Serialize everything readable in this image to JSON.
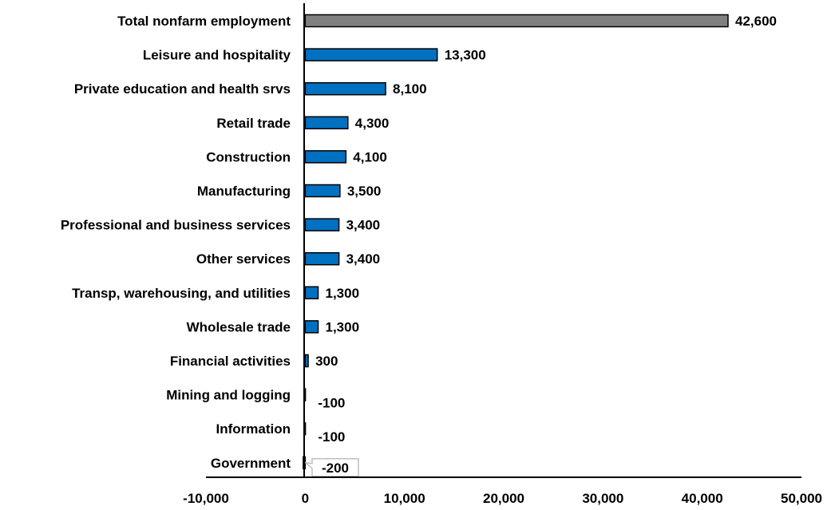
{
  "chart_data": {
    "type": "bar",
    "orientation": "horizontal",
    "title": "",
    "xlabel": "",
    "ylabel": "",
    "categories": [
      "Total nonfarm employment",
      "Leisure and hospitality",
      "Private education and health srvs",
      "Retail trade",
      "Construction",
      "Manufacturing",
      "Professional and business services",
      "Other services",
      "Transp, warehousing, and utilities",
      "Wholesale trade",
      "Financial activities",
      "Mining and logging",
      "Information",
      "Government"
    ],
    "values": [
      42600,
      13300,
      8100,
      4300,
      4100,
      3500,
      3400,
      3400,
      1300,
      1300,
      300,
      -100,
      -100,
      -200
    ],
    "value_labels": [
      "42,600",
      "13,300",
      "8,100",
      "4,300",
      "4,100",
      "3,500",
      "3,400",
      "3,400",
      "1,300",
      "1,300",
      "300",
      "-100",
      "-100",
      "-200"
    ],
    "xlim": [
      -10000,
      50000
    ],
    "xticks": [
      -10000,
      0,
      10000,
      20000,
      30000,
      40000,
      50000
    ],
    "xtick_labels": [
      "-10,000",
      "0",
      "10,000",
      "20,000",
      "30,000",
      "40,000",
      "50,000"
    ],
    "grid": false,
    "legend": "none",
    "colors": {
      "total_bar": "#808080",
      "bar": "#0070C0",
      "bar_stroke": "#000000",
      "axis": "#000000",
      "callout_border": "#BFBFBF"
    },
    "bar_color_index": {
      "total": 0
    },
    "callout_index": 13
  }
}
